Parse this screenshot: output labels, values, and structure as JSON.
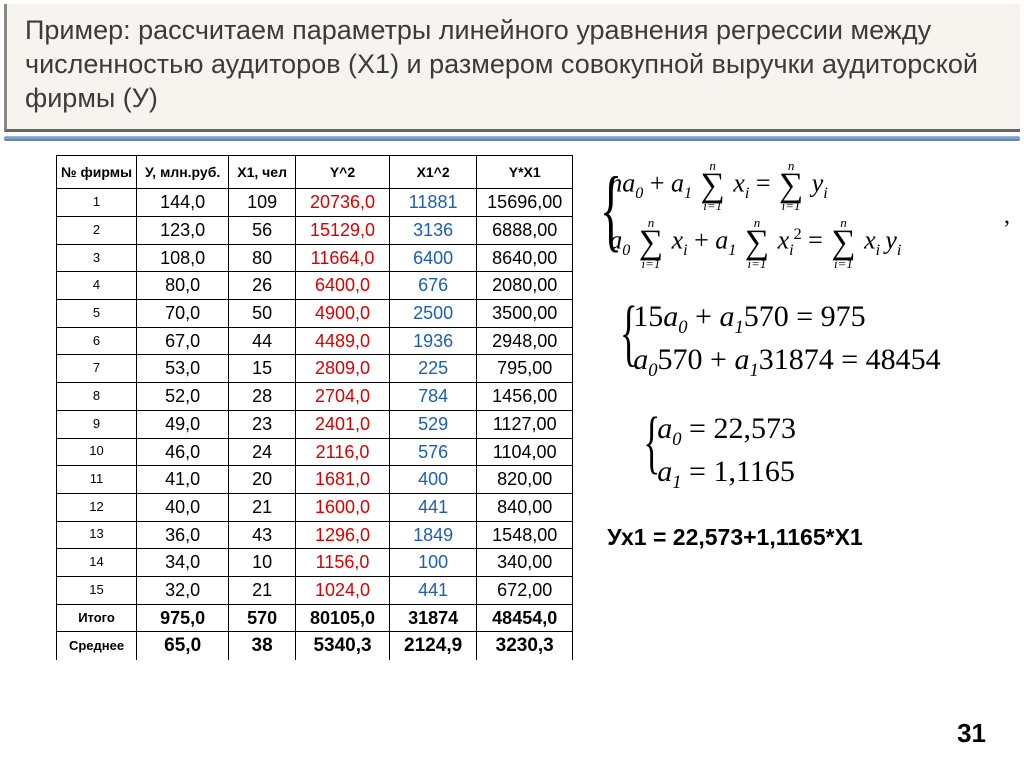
{
  "title": "Пример: рассчитаем параметры линейного уравнения регрессии между численностью аудиторов (Х1) и размером совокупной выручки аудиторской фирмы (У)",
  "table": {
    "headers": [
      "№ фирмы",
      "У, млн.руб.",
      "Х1, чел",
      "Y^2",
      "X1^2",
      "Y*X1"
    ],
    "rows": [
      [
        "1",
        "144,0",
        "109",
        "20736,0",
        "11881",
        "15696,00"
      ],
      [
        "2",
        "123,0",
        "56",
        "15129,0",
        "3136",
        "6888,00"
      ],
      [
        "3",
        "108,0",
        "80",
        "11664,0",
        "6400",
        "8640,00"
      ],
      [
        "4",
        "80,0",
        "26",
        "6400,0",
        "676",
        "2080,00"
      ],
      [
        "5",
        "70,0",
        "50",
        "4900,0",
        "2500",
        "3500,00"
      ],
      [
        "6",
        "67,0",
        "44",
        "4489,0",
        "1936",
        "2948,00"
      ],
      [
        "7",
        "53,0",
        "15",
        "2809,0",
        "225",
        "795,00"
      ],
      [
        "8",
        "52,0",
        "28",
        "2704,0",
        "784",
        "1456,00"
      ],
      [
        "9",
        "49,0",
        "23",
        "2401,0",
        "529",
        "1127,00"
      ],
      [
        "10",
        "46,0",
        "24",
        "2116,0",
        "576",
        "1104,00"
      ],
      [
        "11",
        "41,0",
        "20",
        "1681,0",
        "400",
        "820,00"
      ],
      [
        "12",
        "40,0",
        "21",
        "1600,0",
        "441",
        "840,00"
      ],
      [
        "13",
        "36,0",
        "43",
        "1296,0",
        "1849",
        "1548,00"
      ],
      [
        "14",
        "34,0",
        "10",
        "1156,0",
        "100",
        "340,00"
      ],
      [
        "15",
        "32,0",
        "21",
        "1024,0",
        "441",
        "672,00"
      ]
    ],
    "totals": [
      "Итого",
      "975,0",
      "570",
      "80105,0",
      "31874",
      "48454,0"
    ],
    "mean": [
      "Среднее",
      "65,0",
      "38",
      "5340,3",
      "2124,9",
      "3230,3"
    ]
  },
  "equations": {
    "sys1_line1_parts": [
      "na",
      "0",
      " + a",
      "1"
    ],
    "sys1_line2_parts": [
      "a",
      "0"
    ],
    "sum_lower": "i=1",
    "sum_upper": "n",
    "sys2_line1": "15a₀ + a₁570 = 975",
    "sys2_line2": "a₀570 + a₁31874 = 48454",
    "res_line1": "a₀ = 22,573",
    "res_line2": "a₁ = 1,1165"
  },
  "final": "Ух1 = 22,573+1,1165*Х1",
  "page": "31"
}
